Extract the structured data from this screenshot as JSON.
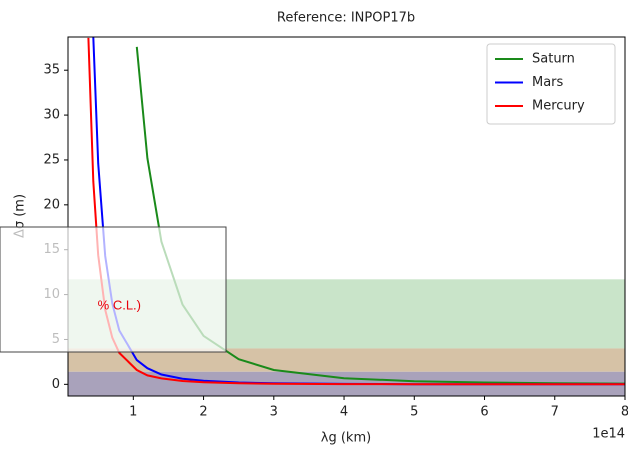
{
  "chart_data": {
    "type": "line",
    "title": "Reference: INPOP17b",
    "x_label": "λg (km)",
    "y_label": "Δσ (m)",
    "x_offset_text": "1e14",
    "x": [
      0.36,
      0.43,
      0.5,
      0.6,
      0.7,
      0.8,
      1.05,
      1.2,
      1.4,
      1.7,
      2,
      2.5,
      3,
      4,
      5,
      6,
      7,
      8
    ],
    "series": [
      {
        "name": "Saturn",
        "color": "#1a8a1a",
        "values": [
          null,
          null,
          null,
          null,
          null,
          null,
          37.6,
          25.2,
          15.9,
          8.9,
          5.4,
          2.8,
          1.6,
          0.68,
          0.35,
          0.2,
          0.13,
          0.08
        ]
      },
      {
        "name": "Mars",
        "color": "#0000ff",
        "values": [
          null,
          38.7,
          24.6,
          14.3,
          9.0,
          6.0,
          2.7,
          1.8,
          1.1,
          0.63,
          0.39,
          0.2,
          0.11,
          0.05,
          0.02,
          0.01,
          0.01,
          0.01
        ]
      },
      {
        "name": "Mercury",
        "color": "#ff0000",
        "values": [
          38.6,
          22.6,
          14.4,
          8.3,
          5.2,
          3.5,
          1.6,
          1.0,
          0.66,
          0.37,
          0.23,
          0.12,
          0.07,
          0.03,
          0.01,
          0.01,
          0.01,
          0
        ]
      }
    ],
    "bands": [
      {
        "from": 4,
        "to": 11.7,
        "color": "#c9e4c9"
      },
      {
        "from": 1.4,
        "to": 4,
        "color": "#d6c2a6"
      },
      {
        "from": -1.3,
        "to": 1.4,
        "color": "#a9a2bb"
      }
    ],
    "xlim": [
      0.07,
      8
    ],
    "ylim": [
      -1.3,
      38.7
    ],
    "xticks": [
      1,
      2,
      3,
      4,
      5,
      6,
      7,
      8
    ],
    "yticks": [
      0,
      5,
      10,
      15,
      20,
      25,
      30,
      35
    ],
    "legend": "upper right",
    "overlay_text": "% C.L.)"
  }
}
